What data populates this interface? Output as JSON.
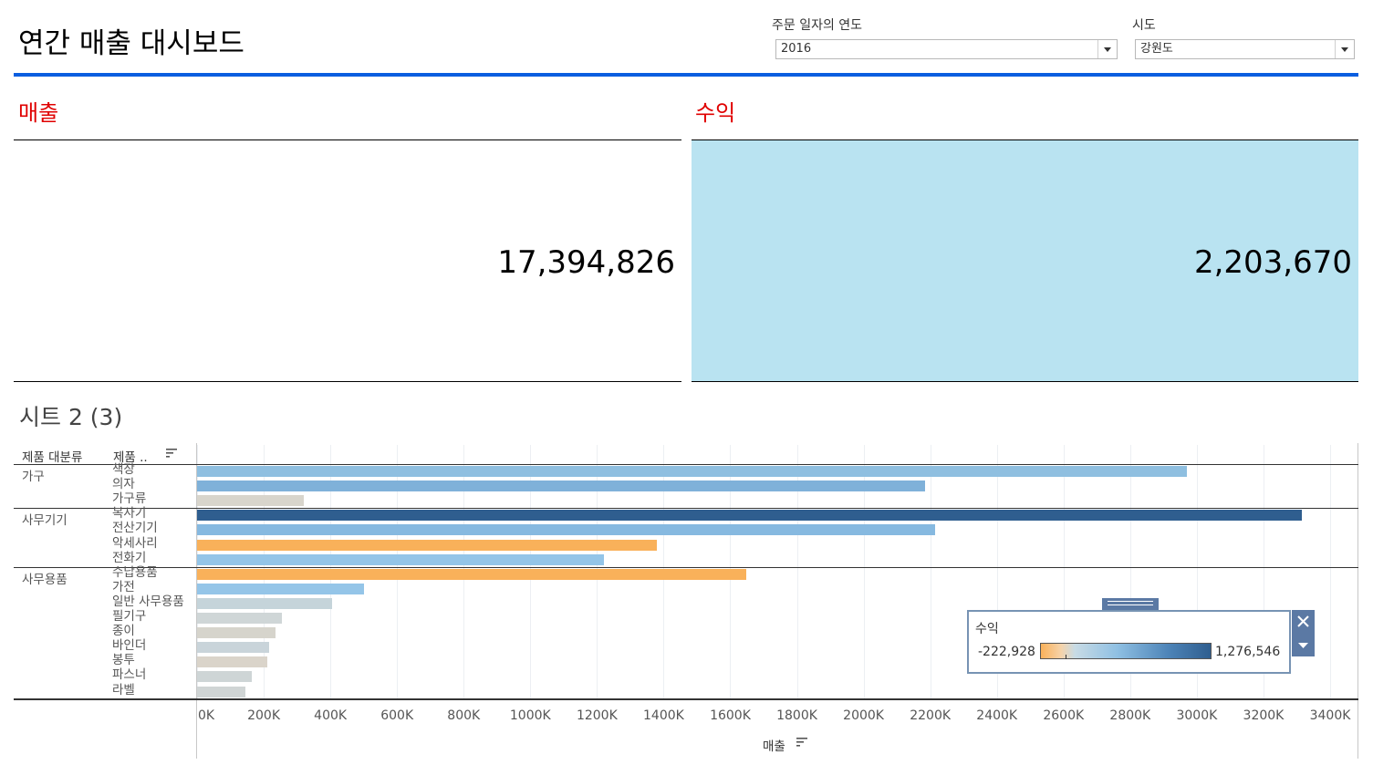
{
  "title": "연간 매출 대시보드",
  "filters": {
    "year": {
      "label": "주문 일자의 연도",
      "value": "2016"
    },
    "region": {
      "label": "시도",
      "value": "강원도"
    }
  },
  "kpi": {
    "sales": {
      "title": "매출",
      "value": "17,394,826"
    },
    "profit": {
      "title": "수익",
      "value": "2,203,670",
      "bg_color": "#b9e3f1"
    }
  },
  "sheet": {
    "title": "시트 2 (3)",
    "header_category": "제품 대분류",
    "header_subcategory": "제품 ..",
    "x_axis_title": "매출"
  },
  "chart_data": {
    "type": "bar",
    "orientation": "horizontal",
    "xlabel": "매출",
    "xlim": [
      0,
      3450000
    ],
    "x_ticks": [
      "0K",
      "200K",
      "400K",
      "600K",
      "800K",
      "1000K",
      "1200K",
      "1400K",
      "1600K",
      "1800K",
      "2000K",
      "2200K",
      "2400K",
      "2600K",
      "2800K",
      "3000K",
      "3200K",
      "3400K"
    ],
    "color_by": "수익",
    "color_scale": {
      "min": -222928,
      "max": 1276546,
      "min_label": "-222,928",
      "max_label": "1,276,546"
    },
    "groups": [
      {
        "category": "가구",
        "items": [
          {
            "name": "책장",
            "value": 2970000,
            "color": "#8fbfe0"
          },
          {
            "name": "의자",
            "value": 2185000,
            "color": "#7fb1d9"
          },
          {
            "name": "가구류",
            "value": 320000,
            "color": "#d8d5cc"
          }
        ]
      },
      {
        "category": "사무기기",
        "items": [
          {
            "name": "복사기",
            "value": 3315000,
            "color": "#2f5e8f"
          },
          {
            "name": "전산기기",
            "value": 2215000,
            "color": "#86b9e0"
          },
          {
            "name": "악세사리",
            "value": 1380000,
            "color": "#f9b15a"
          },
          {
            "name": "전화기",
            "value": 1220000,
            "color": "#94c5e8"
          }
        ]
      },
      {
        "category": "사무용품",
        "items": [
          {
            "name": "수납용품",
            "value": 1648000,
            "color": "#f9b15a"
          },
          {
            "name": "가전",
            "value": 500000,
            "color": "#94c5e8"
          },
          {
            "name": "일반 사무용품",
            "value": 405000,
            "color": "#c5d4da"
          },
          {
            "name": "필기구",
            "value": 255000,
            "color": "#cfd6d7"
          },
          {
            "name": "종이",
            "value": 235000,
            "color": "#d6d4cc"
          },
          {
            "name": "바인더",
            "value": 215000,
            "color": "#c9d4da"
          },
          {
            "name": "봉투",
            "value": 210000,
            "color": "#dad4ca"
          },
          {
            "name": "파스너",
            "value": 165000,
            "color": "#ced5d6"
          },
          {
            "name": "라벨",
            "value": 145000,
            "color": "#d0d5d5"
          }
        ]
      }
    ]
  },
  "legend": {
    "title": "수익",
    "min_label": "-222,928",
    "max_label": "1,276,546"
  },
  "colors": {
    "accent": "#0a5ee0",
    "kpi_title": "#e00000",
    "negative": "#f9b15a",
    "positive": "#2f5e8f"
  }
}
